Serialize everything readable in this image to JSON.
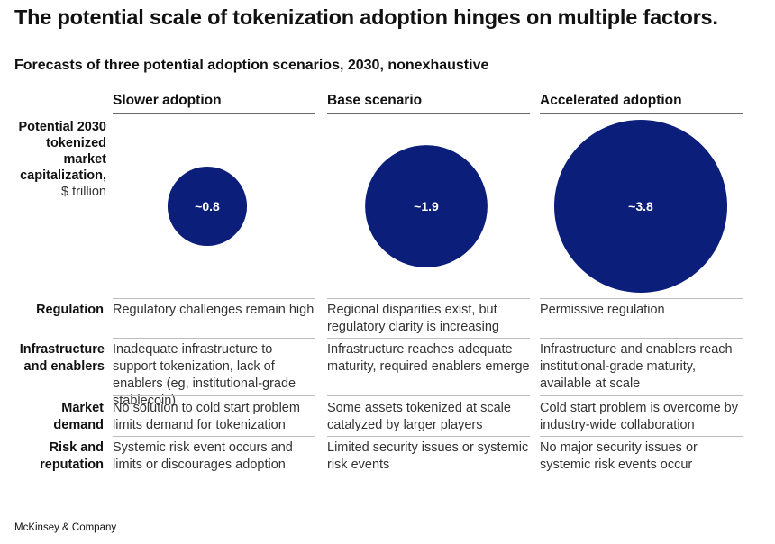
{
  "title": "The potential scale of tokenization adoption hinges on multiple factors.",
  "subtitle": "Forecasts of three potential adoption scenarios, 2030, nonexhaustive",
  "metric_label": {
    "line1": "Potential 2030",
    "line2": "tokenized",
    "line3": "market",
    "line4": "capitalization,",
    "unit": "$ trillion"
  },
  "colors": {
    "bubble": "#0b1f7a",
    "bubble_text": "#ffffff"
  },
  "chart_data": {
    "type": "bubble",
    "categories": [
      "Slower adoption",
      "Base scenario",
      "Accelerated adoption"
    ],
    "values": [
      0.8,
      1.9,
      3.8
    ],
    "value_labels": [
      "~0.8",
      "~1.9",
      "~3.8"
    ],
    "ylabel": "Potential 2030 tokenized market capitalization, $ trillion"
  },
  "rows": [
    {
      "label": "Regulation",
      "cells": [
        "Regulatory challenges remain high",
        "Regional disparities exist, but regulatory clarity is increasing",
        "Permissive regulation"
      ]
    },
    {
      "label": "Infrastructure and enablers",
      "cells": [
        "Inadequate infrastructure to support tokenization, lack of enablers (eg, institutional-grade stablecoin)",
        "Infrastructure reaches adequate maturity, required enablers emerge",
        "Infrastructure and enablers reach institutional-grade maturity, available at scale"
      ]
    },
    {
      "label": "Market demand",
      "cells": [
        "No solution to cold start problem limits demand for tokenization",
        "Some assets tokenized at scale catalyzed by larger players",
        "Cold start problem is overcome by industry-wide collaboration"
      ]
    },
    {
      "label": "Risk and reputation",
      "cells": [
        "Systemic risk event occurs and limits or discourages adoption",
        "Limited security issues or systemic risk events",
        "No major security issues or systemic risk events occur"
      ]
    }
  ],
  "source": "McKinsey & Company"
}
